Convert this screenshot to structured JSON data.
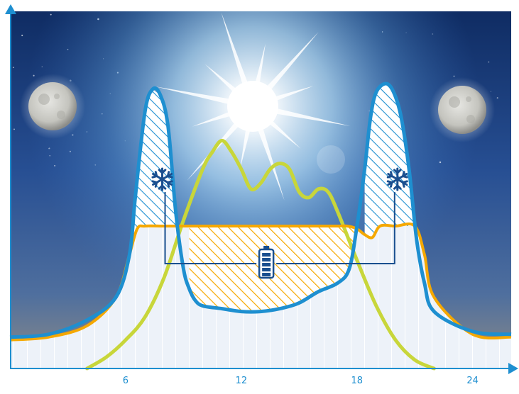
{
  "chart_data": {
    "type": "line",
    "title": "",
    "xlabel": "",
    "ylabel": "",
    "x_ticks": [
      "6",
      "12",
      "18",
      "24"
    ],
    "xlim": [
      0,
      26
    ],
    "ylim": [
      0,
      1
    ],
    "grid": false,
    "legend": "none",
    "series": [
      {
        "role": "demand-curve",
        "color": "#1e8fd0",
        "x": [
          0,
          2,
          4,
          5.5,
          6.2,
          6.5,
          7,
          7.4,
          7.8,
          8.2,
          8.6,
          9,
          9.3,
          9.6,
          10,
          11,
          12,
          13,
          14,
          15,
          16,
          17,
          17.6,
          18,
          18.4,
          18.7,
          19,
          19.5,
          19.9,
          20.3,
          20.7,
          21.1,
          21.5,
          22,
          24,
          26
        ],
        "values": [
          0.11,
          0.12,
          0.17,
          0.25,
          0.4,
          0.6,
          0.9,
          0.98,
          0.96,
          0.85,
          0.55,
          0.35,
          0.28,
          0.24,
          0.22,
          0.21,
          0.2,
          0.2,
          0.21,
          0.23,
          0.27,
          0.3,
          0.35,
          0.5,
          0.7,
          0.88,
          0.97,
          1.0,
          0.97,
          0.88,
          0.7,
          0.45,
          0.3,
          0.2,
          0.13,
          0.12
        ]
      },
      {
        "role": "grid-supply-limit",
        "color": "#f5a800",
        "x": [
          0,
          2,
          4,
          5.5,
          6.2,
          6.6,
          7,
          8,
          9,
          9.5,
          10,
          11,
          12,
          13,
          14,
          15,
          16,
          17,
          17.5,
          18,
          18.4,
          18.8,
          19.2,
          20,
          21,
          21.5,
          22,
          24,
          26
        ],
        "values": [
          0.1,
          0.11,
          0.15,
          0.25,
          0.4,
          0.49,
          0.5,
          0.5,
          0.5,
          0.5,
          0.5,
          0.5,
          0.5,
          0.5,
          0.5,
          0.5,
          0.5,
          0.5,
          0.5,
          0.49,
          0.47,
          0.46,
          0.5,
          0.5,
          0.5,
          0.4,
          0.25,
          0.12,
          0.11
        ]
      },
      {
        "role": "solar-production",
        "color": "#c8d63a",
        "x": [
          4,
          5,
          6,
          7,
          8,
          9,
          10,
          10.5,
          11,
          11.5,
          12,
          12.5,
          13,
          13.5,
          14,
          14.5,
          15,
          15.5,
          16,
          16.5,
          17,
          18,
          19,
          20,
          21,
          22
        ],
        "values": [
          0.0,
          0.04,
          0.1,
          0.18,
          0.32,
          0.52,
          0.7,
          0.76,
          0.8,
          0.76,
          0.7,
          0.63,
          0.65,
          0.7,
          0.72,
          0.7,
          0.62,
          0.6,
          0.63,
          0.62,
          0.55,
          0.38,
          0.22,
          0.1,
          0.03,
          0.0
        ]
      }
    ],
    "annotations": [
      {
        "icon": "snowflake-icon",
        "x": 7.9
      },
      {
        "icon": "snowflake-icon",
        "x": 20.1
      },
      {
        "icon": "battery-icon",
        "x": 13.3
      }
    ]
  }
}
